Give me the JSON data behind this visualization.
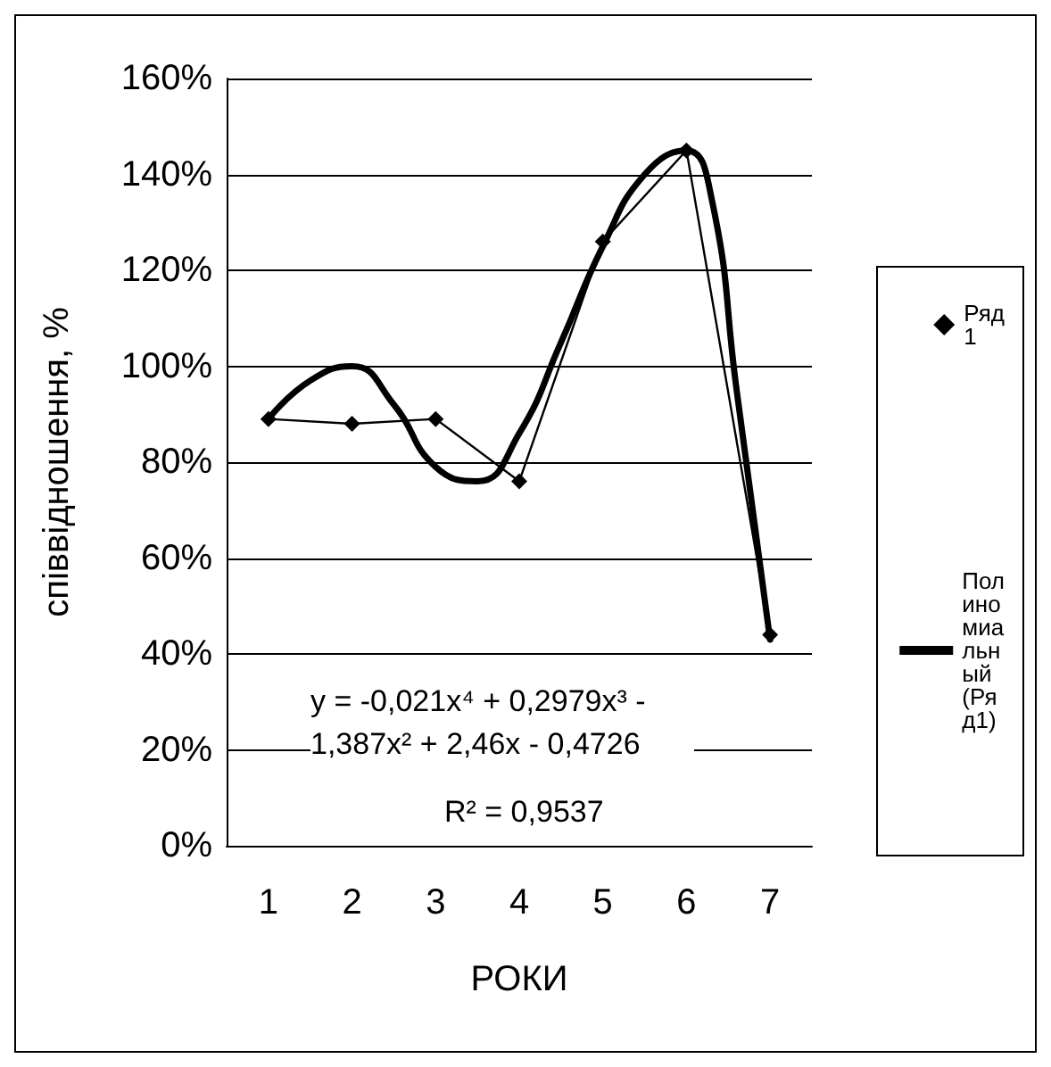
{
  "chart_data": {
    "type": "line",
    "xlabel": "РОКИ",
    "ylabel": "співвідношення, %",
    "x": [
      1,
      2,
      3,
      4,
      5,
      6,
      7
    ],
    "series": [
      {
        "name": "Ряд1",
        "color": "#000000",
        "values": [
          89,
          88,
          89,
          76,
          126,
          145,
          44
        ],
        "marker": "diamond"
      },
      {
        "name": "Полиномиальный (Ряд1)",
        "color": "#000000",
        "marker": "none",
        "x": [
          1,
          1.5,
          2,
          2.5,
          3,
          3.5,
          4,
          4.5,
          5,
          5.5,
          6,
          6.3,
          6.6,
          7
        ],
        "values": [
          89,
          97,
          100,
          92,
          79,
          76,
          86,
          105,
          125,
          140,
          145,
          135,
          95,
          43
        ]
      }
    ],
    "xlim": [
      0.5,
      7.5
    ],
    "xticks": [
      1,
      2,
      3,
      4,
      5,
      6,
      7
    ],
    "ylim": [
      0,
      160
    ],
    "yticks": [
      {
        "value": 0,
        "label": "0%"
      },
      {
        "value": 20,
        "label": "20%"
      },
      {
        "value": 40,
        "label": "40%"
      },
      {
        "value": 60,
        "label": "60%"
      },
      {
        "value": 80,
        "label": "80%"
      },
      {
        "value": 100,
        "label": "100%"
      },
      {
        "value": 120,
        "label": "120%"
      },
      {
        "value": 140,
        "label": "140%"
      },
      {
        "value": 160,
        "label": "160%"
      }
    ],
    "grid": "y",
    "legend": "right",
    "annotations": [
      "y = -0,021x⁴ + 0,2979x³ - 1,387x² + 2,46x - 0,4726",
      "R² = 0,9537"
    ]
  }
}
